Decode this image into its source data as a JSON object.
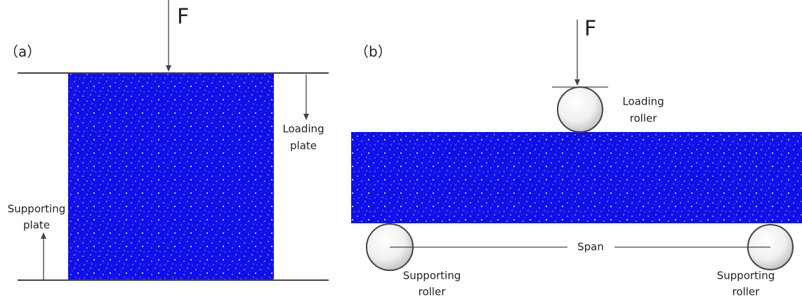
{
  "panel_a": {
    "label": "（a）",
    "force": "F",
    "loading_plate": [
      "Loading",
      "plate"
    ],
    "supporting_plate": [
      "Supporting",
      "plate"
    ]
  },
  "panel_b": {
    "label": "（b）",
    "force": "F",
    "loading_roller": [
      "Loading",
      "roller"
    ],
    "span": "Span",
    "supporting_roller_left": [
      "Supporting",
      "roller"
    ],
    "supporting_roller_right": [
      "Supporting",
      "roller"
    ]
  }
}
